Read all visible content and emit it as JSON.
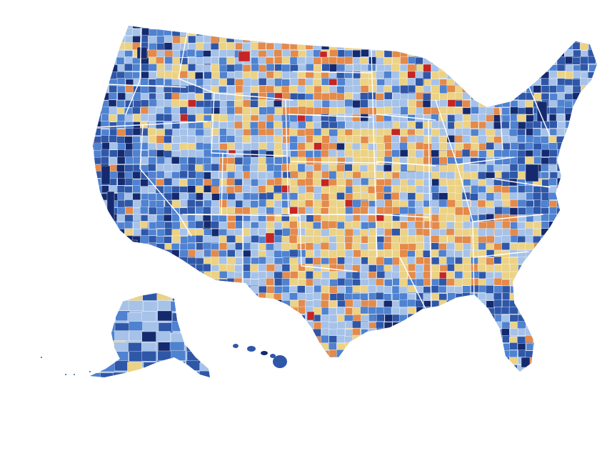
{
  "map": {
    "type": "choropleth",
    "palette": {
      "darkest_blue": "#152a6e",
      "dark_blue": "#2f57a8",
      "mid_blue": "#4f82d0",
      "light_blue": "#a6c2e8",
      "yellow": "#ecd284",
      "orange": "#e48a4a",
      "red": "#c42525",
      "border": "#ffffff"
    },
    "regions": [
      "contiguous-us",
      "alaska",
      "hawaii"
    ]
  }
}
